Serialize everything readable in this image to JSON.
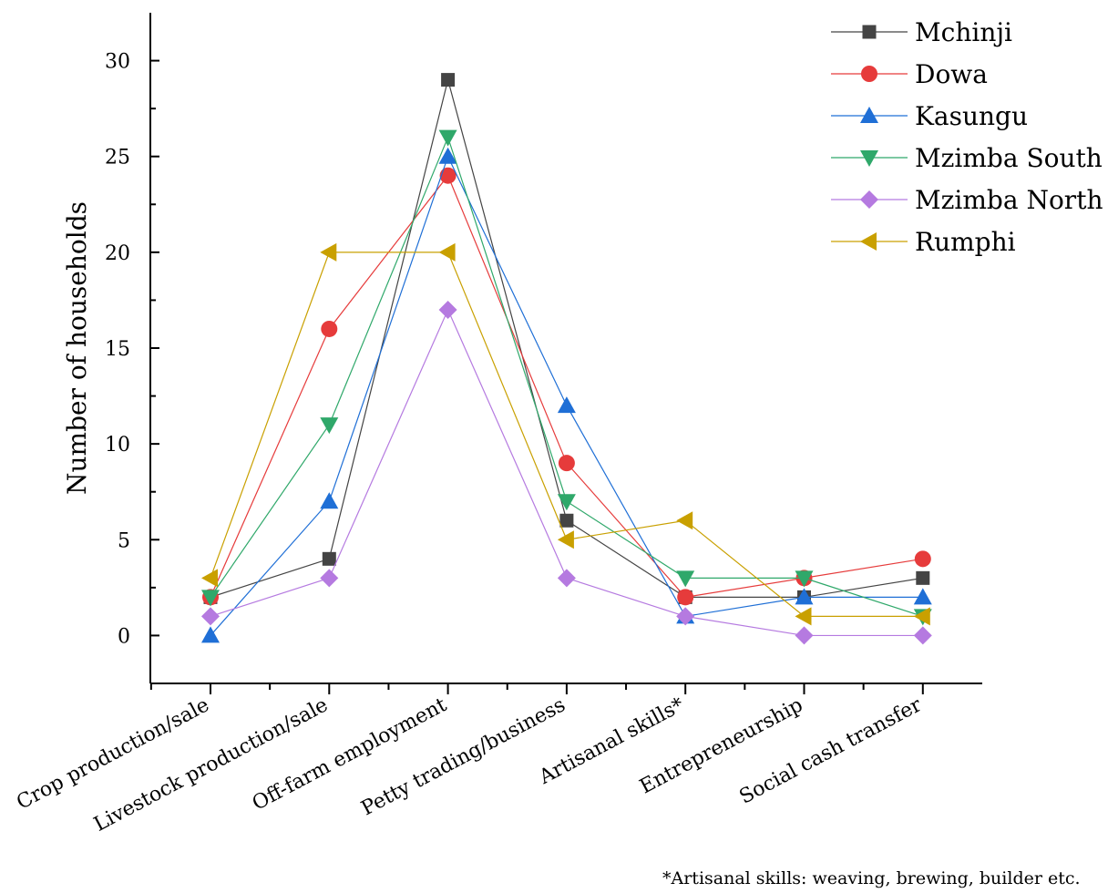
{
  "chart_data": {
    "type": "line",
    "categories": [
      "Crop production/sale",
      "Livestock production/sale",
      "Off-farm employment",
      "Petty trading/business",
      "Artisanal skills*",
      "Entrepreneurship",
      "Social cash transfer"
    ],
    "ylabel": "Number of households",
    "xlabel": "",
    "ylim": [
      -2.5,
      32.5
    ],
    "yticks": [
      0,
      5,
      10,
      15,
      20,
      25,
      30
    ],
    "grid": false,
    "legend_position": "top-right",
    "series": [
      {
        "name": "Mchinji",
        "color": "#444444",
        "marker": "square",
        "values": [
          2,
          4,
          29,
          6,
          2,
          2,
          3
        ]
      },
      {
        "name": "Dowa",
        "color": "#e63b3b",
        "marker": "circle",
        "values": [
          2,
          16,
          24,
          9,
          2,
          3,
          4
        ]
      },
      {
        "name": "Kasungu",
        "color": "#1f6fd6",
        "marker": "triangle-up",
        "values": [
          0,
          7,
          25,
          12,
          1,
          2,
          2
        ]
      },
      {
        "name": "Mzimba South",
        "color": "#2fa86a",
        "marker": "triangle-down",
        "values": [
          2,
          11,
          26,
          7,
          3,
          3,
          1
        ]
      },
      {
        "name": "Mzimba North",
        "color": "#b57ae0",
        "marker": "diamond",
        "values": [
          1,
          3,
          17,
          3,
          1,
          0,
          0
        ]
      },
      {
        "name": "Rumphi",
        "color": "#c9a000",
        "marker": "triangle-left",
        "values": [
          3,
          20,
          20,
          5,
          6,
          1,
          1
        ]
      }
    ]
  },
  "footnote": "*Artisanal skills: weaving, brewing, builder etc."
}
